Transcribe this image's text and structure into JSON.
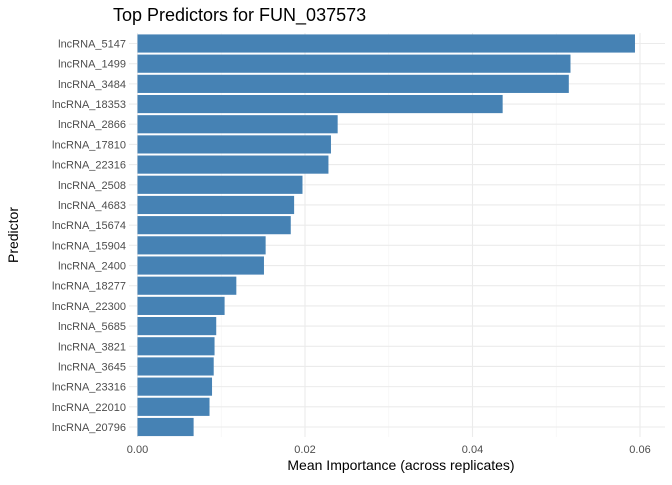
{
  "chart_data": {
    "type": "bar",
    "orientation": "horizontal",
    "title": "Top Predictors for FUN_037573",
    "xlabel": "Mean Importance (across replicates)",
    "ylabel": "Predictor",
    "xlim": [
      0,
      0.0615
    ],
    "x_ticks": [
      0.0,
      0.02,
      0.04,
      0.06
    ],
    "x_tick_labels": [
      "0.00",
      "0.02",
      "0.04",
      "0.06"
    ],
    "grid": true,
    "bar_color": "#4682B4",
    "categories": [
      "lncRNA_5147",
      "lncRNA_1499",
      "lncRNA_3484",
      "lncRNA_18353",
      "lncRNA_2866",
      "lncRNA_17810",
      "lncRNA_22316",
      "lncRNA_2508",
      "lncRNA_4683",
      "lncRNA_15674",
      "lncRNA_15904",
      "lncRNA_2400",
      "lncRNA_18277",
      "lncRNA_22300",
      "lncRNA_5685",
      "lncRNA_3821",
      "lncRNA_3645",
      "lncRNA_23316",
      "lncRNA_22010",
      "lncRNA_20796"
    ],
    "values": [
      0.0594,
      0.0517,
      0.0515,
      0.0436,
      0.0239,
      0.0231,
      0.0228,
      0.0197,
      0.0187,
      0.0183,
      0.0153,
      0.0151,
      0.0118,
      0.0104,
      0.0094,
      0.0092,
      0.0091,
      0.0089,
      0.0086,
      0.0067
    ]
  }
}
